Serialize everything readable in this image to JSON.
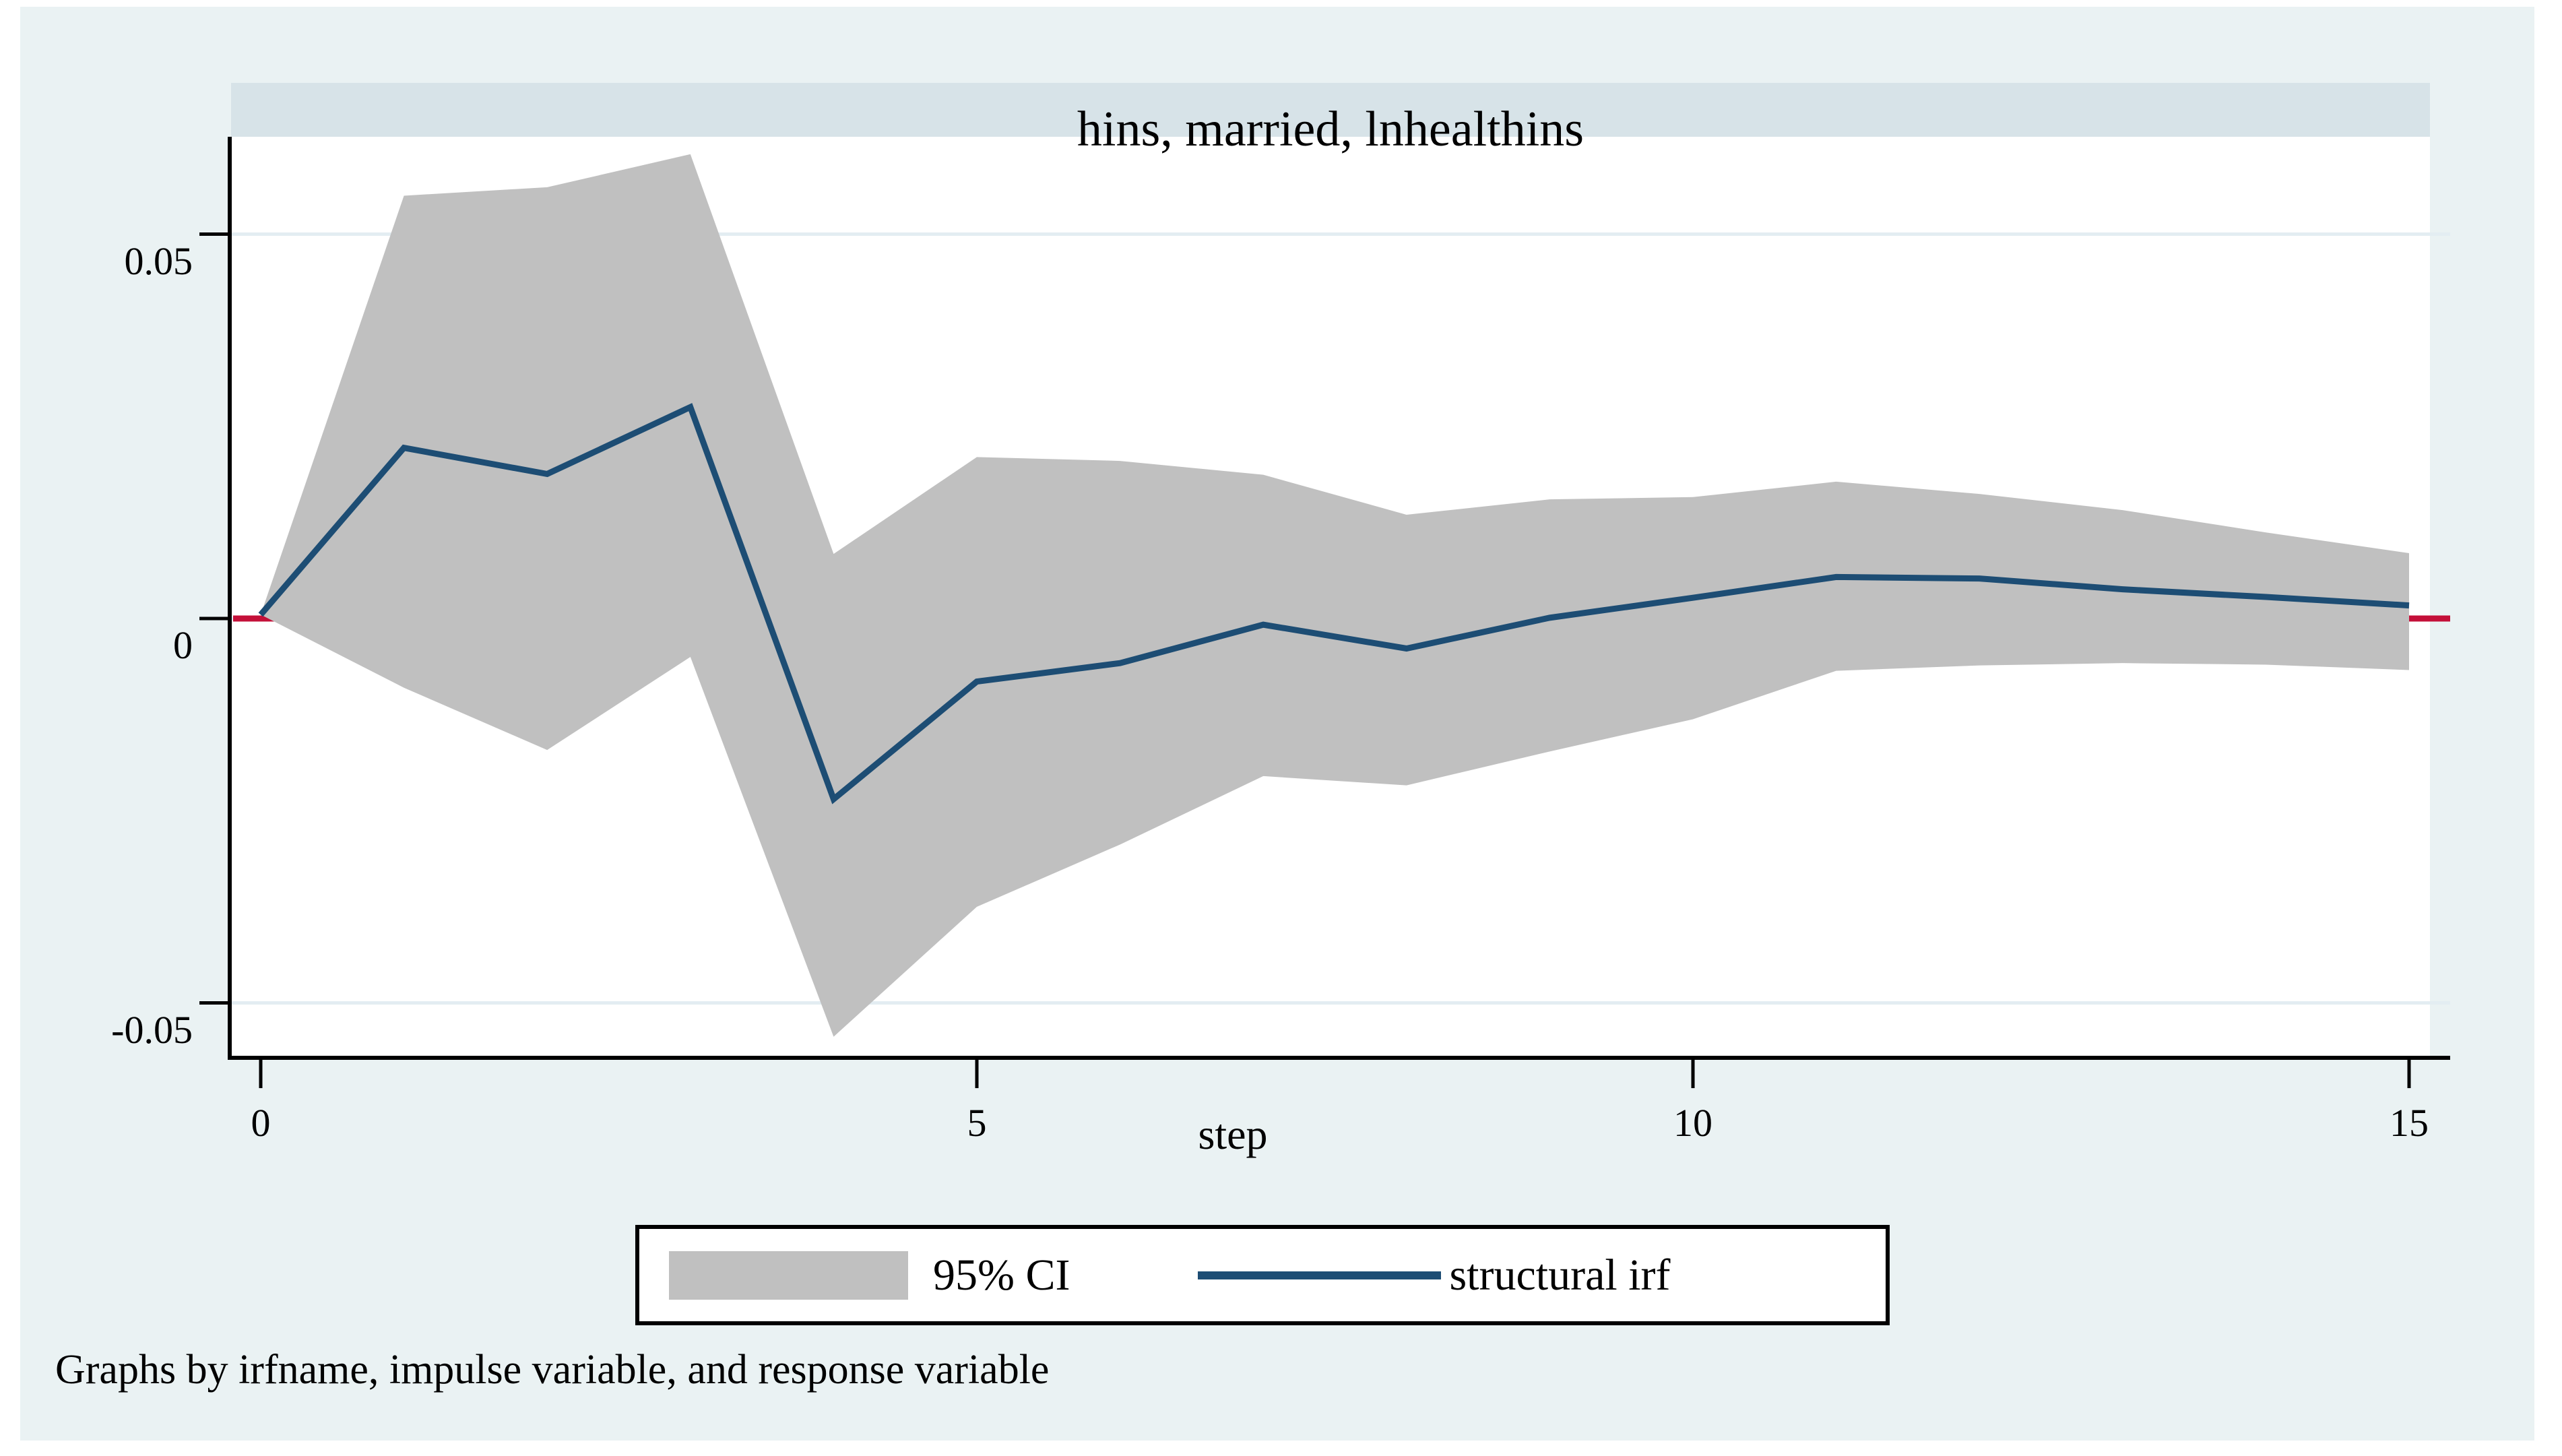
{
  "title": "hins, married, lnhealthins",
  "footer": "Graphs by irfname, impulse variable, and response variable",
  "axes": {
    "x": {
      "label": "step",
      "ticks": [
        {
          "v": 0,
          "t": "0"
        },
        {
          "v": 5,
          "t": "5"
        },
        {
          "v": 10,
          "t": "10"
        },
        {
          "v": 15,
          "t": "15"
        }
      ]
    },
    "y": {
      "ticks": [
        {
          "v": 0.05,
          "t": "0.05"
        },
        {
          "v": 0,
          "t": "0"
        },
        {
          "v": -0.05,
          "t": "-0.05"
        }
      ]
    }
  },
  "legend": {
    "ci_label": "95% CI",
    "irf_label": "structural irf"
  },
  "colors": {
    "band": "#c0c0c0",
    "irf_line": "#1d4d74",
    "zero_line": "#c41039",
    "grid": "#e3edf2",
    "axis": "#000000",
    "plot_bg": "#ffffff",
    "region_bg": "#eaf2f3",
    "title_band_bg": "#d7e3e8"
  },
  "chart_data": {
    "type": "line+area (impulse-response with 95% CI band)",
    "title": "hins, married, lnhealthins",
    "xlabel": "step",
    "ylabel": "",
    "x": [
      0,
      1,
      2,
      3,
      4,
      5,
      6,
      7,
      8,
      9,
      10,
      11,
      12,
      13,
      14,
      15
    ],
    "series": [
      {
        "name": "structural irf",
        "values": [
          0.0005,
          0.0222,
          0.0188,
          0.0275,
          -0.0235,
          -0.0082,
          -0.0058,
          -0.0008,
          -0.0039,
          0.0001,
          0.0027,
          0.0054,
          0.0052,
          0.0038,
          0.0028,
          0.0017
        ]
      },
      {
        "name": "95% CI upper",
        "values": [
          0.0005,
          0.055,
          0.0561,
          0.0604,
          0.0084,
          0.021,
          0.0205,
          0.0187,
          0.0135,
          0.0155,
          0.0158,
          0.0178,
          0.0162,
          0.0141,
          0.0112,
          0.0085
        ]
      },
      {
        "name": "95% CI lower",
        "values": [
          0.0005,
          -0.009,
          -0.0171,
          -0.005,
          -0.0544,
          -0.0375,
          -0.0294,
          -0.0205,
          -0.0217,
          -0.0173,
          -0.0131,
          -0.0068,
          -0.0061,
          -0.0058,
          -0.006,
          -0.0067
        ]
      }
    ],
    "xticks": [
      0,
      5,
      10,
      15
    ],
    "yticks": [
      -0.05,
      0,
      0.05
    ],
    "xlim": [
      -0.22,
      15.15
    ],
    "ylim": [
      -0.06,
      0.064
    ],
    "grid": true,
    "zero_reference_line": 0,
    "legend_position": "bottom-center"
  }
}
